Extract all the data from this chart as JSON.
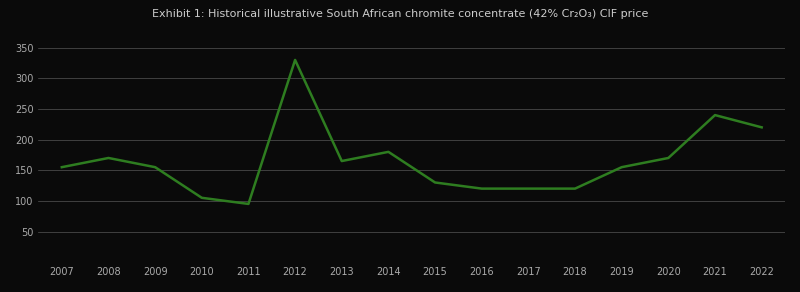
{
  "years": [
    2007,
    2008,
    2009,
    2010,
    2011,
    2012,
    2013,
    2014,
    2015,
    2016,
    2017,
    2018,
    2019,
    2020,
    2021,
    2022
  ],
  "values": [
    155,
    170,
    155,
    105,
    95,
    330,
    165,
    180,
    130,
    120,
    120,
    120,
    155,
    170,
    240,
    220
  ],
  "yticks": [
    0,
    50,
    100,
    150,
    200,
    250,
    300,
    350
  ],
  "ylim": [
    0,
    370
  ],
  "xlim": [
    2006.5,
    2022.5
  ],
  "line_color": "#2e7d20",
  "line_width": 1.8,
  "background_color": "#0a0a0a",
  "grid_color": "#555555",
  "tick_color": "#aaaaaa",
  "tick_fontsize": 7,
  "title": "Exhibit 1: Historical illustrative South African chromite concentrate (42% Cr₂O₃) CIF price",
  "title_color": "#cccccc",
  "title_fontsize": 8
}
